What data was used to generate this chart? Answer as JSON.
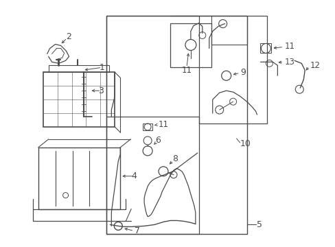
{
  "bg_color": "#ffffff",
  "line_color": "#4a4a4a",
  "fig_width": 4.89,
  "fig_height": 3.6,
  "dpi": 100
}
